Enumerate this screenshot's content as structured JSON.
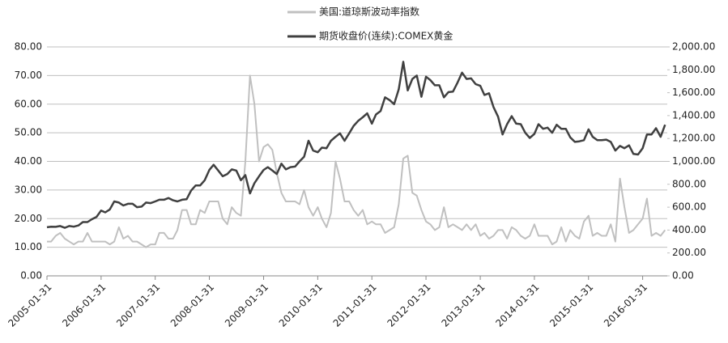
{
  "chart_data": {
    "type": "line",
    "series": [
      {
        "name": "美国:道琼斯波动率指数",
        "color": "#c0c0c0",
        "axis": "y",
        "values": [
          12,
          12,
          14,
          15,
          13,
          12,
          11,
          12,
          12,
          15,
          12,
          12,
          12,
          12,
          11,
          12,
          17,
          13,
          14,
          12,
          12,
          11,
          10,
          11,
          11,
          15,
          15,
          13,
          13,
          16,
          23,
          23,
          18,
          18,
          23,
          22,
          26,
          26,
          26,
          20,
          18,
          24,
          22,
          21,
          40,
          70,
          60,
          40,
          45,
          46,
          44,
          36,
          29,
          26,
          26,
          26,
          25,
          30,
          24,
          21,
          24,
          20,
          17,
          22,
          40,
          34,
          26,
          26,
          23,
          21,
          23,
          18,
          19,
          18,
          18,
          15,
          16,
          17,
          25,
          41,
          42,
          29,
          28,
          23,
          19,
          18,
          16,
          17,
          24,
          17,
          18,
          17,
          16,
          18,
          16,
          18,
          14,
          15,
          13,
          14,
          16,
          16,
          13,
          17,
          16,
          14,
          13,
          14,
          18,
          14,
          14,
          14,
          11,
          12,
          17,
          12,
          16,
          14,
          13,
          19,
          21,
          14,
          15,
          14,
          14,
          18,
          12,
          34,
          24,
          15,
          16,
          18,
          20,
          27,
          14,
          15,
          14,
          16
        ]
      },
      {
        "name": "期货收盘价(连续):COMEX黄金",
        "color": "#404040",
        "axis": "y2",
        "values": [
          425,
          430,
          428,
          435,
          420,
          435,
          430,
          440,
          470,
          470,
          495,
          515,
          570,
          555,
          580,
          650,
          640,
          615,
          630,
          630,
          600,
          605,
          640,
          635,
          650,
          665,
          665,
          680,
          660,
          650,
          665,
          670,
          745,
          790,
          790,
          835,
          925,
          970,
          920,
          870,
          890,
          930,
          920,
          835,
          880,
          720,
          810,
          870,
          925,
          950,
          920,
          890,
          980,
          930,
          950,
          955,
          1000,
          1040,
          1180,
          1095,
          1080,
          1120,
          1115,
          1180,
          1215,
          1245,
          1180,
          1245,
          1310,
          1355,
          1385,
          1420,
          1330,
          1410,
          1440,
          1560,
          1535,
          1500,
          1630,
          1870,
          1620,
          1720,
          1750,
          1565,
          1740,
          1710,
          1665,
          1665,
          1560,
          1605,
          1610,
          1690,
          1775,
          1720,
          1725,
          1675,
          1660,
          1580,
          1595,
          1475,
          1390,
          1235,
          1325,
          1395,
          1330,
          1325,
          1250,
          1205,
          1240,
          1325,
          1285,
          1295,
          1250,
          1320,
          1285,
          1285,
          1210,
          1170,
          1175,
          1185,
          1280,
          1215,
          1185,
          1185,
          1190,
          1170,
          1095,
          1135,
          1115,
          1140,
          1065,
          1060,
          1115,
          1235,
          1235,
          1290,
          1215,
          1320
        ]
      }
    ],
    "x": [
      "2005-01-31",
      "2005-02-28",
      "2005-03-31",
      "2005-04-30",
      "2005-05-31",
      "2005-06-30",
      "2005-07-31",
      "2005-08-31",
      "2005-09-30",
      "2005-10-31",
      "2005-11-30",
      "2005-12-31",
      "2006-01-31",
      "2006-02-28",
      "2006-03-31",
      "2006-04-30",
      "2006-05-31",
      "2006-06-30",
      "2006-07-31",
      "2006-08-31",
      "2006-09-30",
      "2006-10-31",
      "2006-11-30",
      "2006-12-31",
      "2007-01-31",
      "2007-02-28",
      "2007-03-31",
      "2007-04-30",
      "2007-05-31",
      "2007-06-30",
      "2007-07-31",
      "2007-08-31",
      "2007-09-30",
      "2007-10-31",
      "2007-11-30",
      "2007-12-31",
      "2008-01-31",
      "2008-02-29",
      "2008-03-31",
      "2008-04-30",
      "2008-05-31",
      "2008-06-30",
      "2008-07-31",
      "2008-08-31",
      "2008-09-30",
      "2008-10-31",
      "2008-11-30",
      "2008-12-31",
      "2009-01-31",
      "2009-02-28",
      "2009-03-31",
      "2009-04-30",
      "2009-05-31",
      "2009-06-30",
      "2009-07-31",
      "2009-08-31",
      "2009-09-30",
      "2009-10-31",
      "2009-11-30",
      "2009-12-31",
      "2010-01-31",
      "2010-02-28",
      "2010-03-31",
      "2010-04-30",
      "2010-05-31",
      "2010-06-30",
      "2010-07-31",
      "2010-08-31",
      "2010-09-30",
      "2010-10-31",
      "2010-11-30",
      "2010-12-31",
      "2011-01-31",
      "2011-02-28",
      "2011-03-31",
      "2011-04-30",
      "2011-05-31",
      "2011-06-30",
      "2011-07-31",
      "2011-08-31",
      "2011-09-30",
      "2011-10-31",
      "2011-11-30",
      "2011-12-31",
      "2012-01-31",
      "2012-02-29",
      "2012-03-31",
      "2012-04-30",
      "2012-05-31",
      "2012-06-30",
      "2012-07-31",
      "2012-08-31",
      "2012-09-30",
      "2012-10-31",
      "2012-11-30",
      "2012-12-31",
      "2013-01-31",
      "2013-02-28",
      "2013-03-31",
      "2013-04-30",
      "2013-05-31",
      "2013-06-30",
      "2013-07-31",
      "2013-08-31",
      "2013-09-30",
      "2013-10-31",
      "2013-11-30",
      "2013-12-31",
      "2014-01-31",
      "2014-02-28",
      "2014-03-31",
      "2014-04-30",
      "2014-05-31",
      "2014-06-30",
      "2014-07-31",
      "2014-08-31",
      "2014-09-30",
      "2014-10-31",
      "2014-11-30",
      "2014-12-31",
      "2015-01-31",
      "2015-02-28",
      "2015-03-31",
      "2015-04-30",
      "2015-05-31",
      "2015-06-30",
      "2015-07-31",
      "2015-08-31",
      "2015-09-30",
      "2015-10-31",
      "2015-11-30",
      "2015-12-31",
      "2016-01-31",
      "2016-02-29",
      "2016-03-31",
      "2016-04-30",
      "2016-05-31",
      "2016-06-30"
    ],
    "xlim": [
      "2005-01-31",
      "2016-07-15"
    ],
    "xticks": [
      "2005-01-31",
      "2006-01-31",
      "2007-01-31",
      "2008-01-31",
      "2009-01-31",
      "2010-01-31",
      "2011-01-31",
      "2012-01-31",
      "2013-01-31",
      "2014-01-31",
      "2015-01-31",
      "2016-01-31"
    ],
    "ylim": [
      0,
      80
    ],
    "yticks": [
      {
        "value": 0,
        "label": "0.00"
      },
      {
        "value": 10,
        "label": "10.00"
      },
      {
        "value": 20,
        "label": "20.00"
      },
      {
        "value": 30,
        "label": "30.00"
      },
      {
        "value": 40,
        "label": "40.00"
      },
      {
        "value": 50,
        "label": "50.00"
      },
      {
        "value": 60,
        "label": "60.00"
      },
      {
        "value": 70,
        "label": "70.00"
      },
      {
        "value": 80,
        "label": "80.00"
      }
    ],
    "y2lim": [
      0,
      2000
    ],
    "y2ticks": [
      {
        "value": 0,
        "label": "0.00"
      },
      {
        "value": 200,
        "label": "200.00"
      },
      {
        "value": 400,
        "label": "400.00"
      },
      {
        "value": 600,
        "label": "600.00"
      },
      {
        "value": 800,
        "label": "800.00"
      },
      {
        "value": 1000,
        "label": "1,000.00"
      },
      {
        "value": 1200,
        "label": "1,200.00"
      },
      {
        "value": 1400,
        "label": "1,400.00"
      },
      {
        "value": 1600,
        "label": "1,600.00"
      },
      {
        "value": 1800,
        "label": "1,800.00"
      },
      {
        "value": 2000,
        "label": "2,000.00"
      }
    ],
    "grid": true
  }
}
